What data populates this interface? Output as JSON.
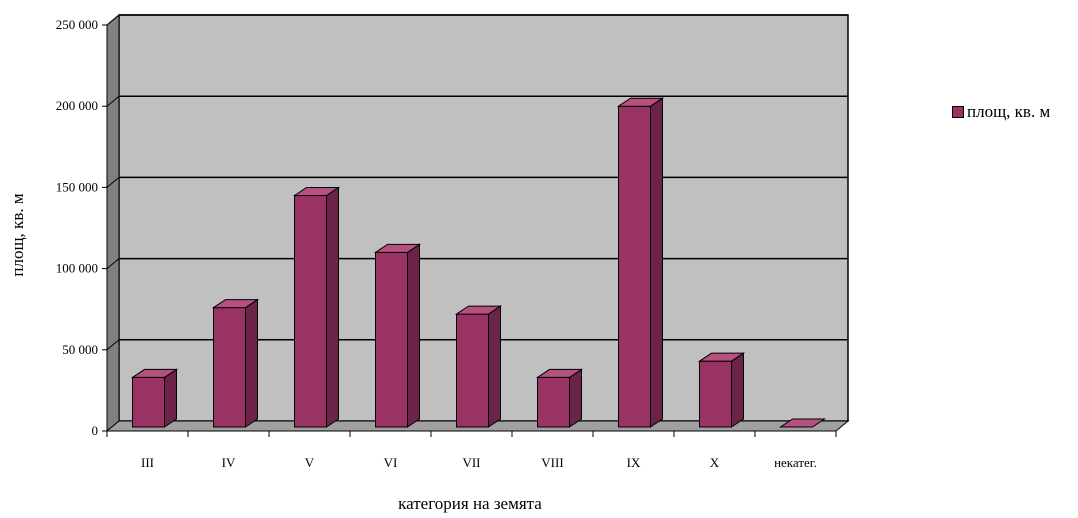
{
  "chart_data": {
    "type": "bar",
    "style": "3d-column",
    "categories": [
      "III",
      "IV",
      "V",
      "VI",
      "VII",
      "VIII",
      "IX",
      "X",
      "некатег."
    ],
    "series": [
      {
        "name": "площ, кв. м",
        "values": [
          33000,
          76000,
          145000,
          110000,
          72000,
          33000,
          200000,
          43000,
          0
        ]
      }
    ],
    "ylim": [
      0,
      250000
    ],
    "ytick_values": [
      0,
      50000,
      100000,
      150000,
      200000,
      250000
    ],
    "ytick_labels": [
      "0",
      "50 000",
      "100 000",
      "150 000",
      "200 000",
      "250 000"
    ],
    "xlabel": "категория на земята",
    "ylabel": "площ, кв. м",
    "grid": true,
    "legend_position": "right",
    "colors": {
      "bar_front": "#993366",
      "bar_side": "#6b2348",
      "bar_top": "#b5507f",
      "plot_back": "#c0c0c0",
      "plot_wall": "#808080",
      "plot_floor": "#a0a0a0"
    }
  }
}
